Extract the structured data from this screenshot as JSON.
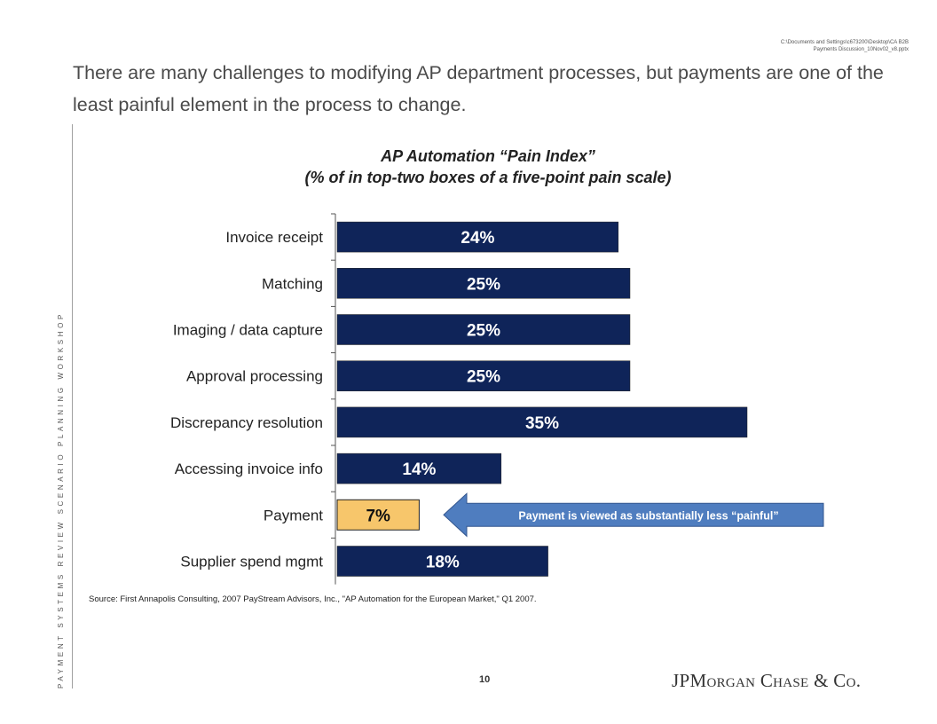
{
  "header": {
    "file_path_line1": "C:\\Documents and Settings\\c673200\\Desktop\\CA B2B",
    "file_path_line2": "Payments Discussion_10Nov02_v8.pptx",
    "headline": "There are many challenges to modifying AP department processes, but payments are one of the least painful element in the process to change."
  },
  "sidebar": {
    "vertical_text": "PAYMENT SYSTEMS REVIEW SCENARIO PLANNING WORKSHOP"
  },
  "chart_data": {
    "type": "bar",
    "orientation": "horizontal",
    "title_line1": "AP Automation “Pain Index”",
    "title_line2": "(% of in top-two boxes of a five-point pain scale)",
    "categories": [
      "Invoice receipt",
      "Matching",
      "Imaging / data capture",
      "Approval processing",
      "Discrepancy resolution",
      "Accessing invoice info",
      "Payment",
      "Supplier spend mgmt"
    ],
    "values": [
      24,
      25,
      25,
      25,
      35,
      14,
      7,
      18
    ],
    "value_labels": [
      "24%",
      "25%",
      "25%",
      "25%",
      "35%",
      "14%",
      "7%",
      "18%"
    ],
    "unit": "%",
    "bar_color": "#0f2459",
    "highlight_index": 6,
    "highlight_color": "#f7c66b",
    "annotation": {
      "text": "Payment is viewed as substantially less “painful”",
      "target_category": "Payment",
      "fill_color": "#4f7dbf"
    }
  },
  "footer": {
    "source": "Source: First Annapolis Consulting, 2007 PayStream Advisors, Inc., \"AP Automation for the European Market,\" Q1 2007.",
    "page_number": "10",
    "logo": {
      "part1": "JPM",
      "part2": "ORGAN",
      "part3": " C",
      "part4": "HASE",
      "part5": " & C",
      "part6": "O",
      "part7": "."
    }
  }
}
